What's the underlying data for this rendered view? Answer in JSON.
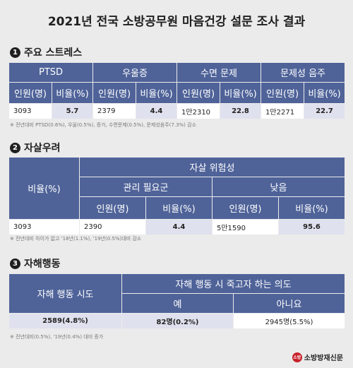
{
  "title": "2021년 전국 소방공무원 마음건강 설문 조사 결과",
  "section1": {
    "num": "1",
    "title": "주요 스트레스",
    "headers": [
      "PTSD",
      "우울증",
      "수면 문제",
      "문제성 음주"
    ],
    "sub_headers": [
      "인원(명)",
      "비율(%)",
      "인원(명)",
      "비율(%)",
      "인원(명)",
      "비율(%)",
      "인원(명)",
      "비율(%)"
    ],
    "row": [
      "3093",
      "5.7",
      "2379",
      "4.4",
      "1만2310",
      "22.8",
      "1만2271",
      "22.7"
    ],
    "note": "※ 전년대비 PTSD(0.6%), 우울(0.5%), 증가, 수면문제(0.5%), 문제성음주(7.3%) 감소"
  },
  "section2": {
    "num": "2",
    "title": "자살우려",
    "col_ratio": "비율(%)",
    "risk_group": "자살 위험성",
    "mgmt": "관리 필요군",
    "low": "낮음",
    "sub_headers": [
      "인원(명)",
      "비율(%)",
      "인원(명)",
      "비율(%)"
    ],
    "row": [
      "3093",
      "2390",
      "4.4",
      "5만1590",
      "95.6"
    ],
    "note": "※ 전년대비 차이가 없고 '18년(1.1%), '19년(0.5%)대비 감소"
  },
  "section3": {
    "num": "3",
    "title": "자해행동",
    "attempt": "자해 행동 시도",
    "intent": "자해 행동 시 죽고자 하는 의도",
    "yes": "예",
    "no": "아니요",
    "row": [
      "2589(4.8%)",
      "82명(0.2%)",
      "2945명(5.5%)"
    ],
    "note": "※ 전년대비(0.5%), '19년(0.4%) 대비 증가"
  },
  "logo": {
    "mark": "소방",
    "text": "소방방재신문"
  }
}
